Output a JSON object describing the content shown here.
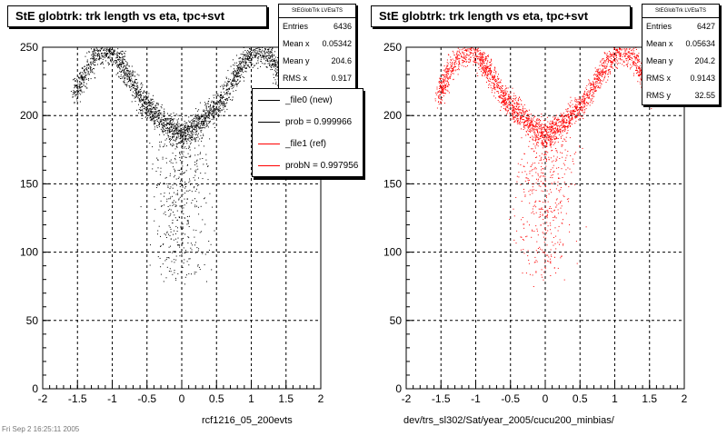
{
  "colors": {
    "left_series": "#000000",
    "right_series": "#ff0000",
    "grid": "#000000"
  },
  "footnote": "Fri Sep 2 16:25:11 2005",
  "panels": [
    {
      "title": "StE globtrk: trk length vs eta, tpc+svt",
      "stats": {
        "name": "StEGlobTrk LVEtaTS",
        "rows": [
          {
            "label": "Entries",
            "value": "6436"
          },
          {
            "label": "Mean x",
            "value": "0.05342"
          },
          {
            "label": "Mean y",
            "value": "204.6"
          },
          {
            "label": "RMS x",
            "value": "0.917"
          }
        ]
      },
      "legend": [
        {
          "text": "_file0 (new)",
          "color": "#000000"
        },
        {
          "text": "prob = 0.999966",
          "color": "#000000"
        },
        {
          "text": "_file1 (ref)",
          "color": "#ff0000"
        },
        {
          "text": "probN = 0.997956",
          "color": "#ff0000"
        }
      ],
      "x_title": "rcf1216_05_200evts"
    },
    {
      "title": "StE globtrk: trk length vs eta, tpc+svt",
      "stats": {
        "name": "StEGlobTrk LVEtaTS",
        "rows": [
          {
            "label": "Entries",
            "value": "6427"
          },
          {
            "label": "Mean x",
            "value": "0.05634"
          },
          {
            "label": "Mean y",
            "value": "204.2"
          },
          {
            "label": "RMS x",
            "value": "0.9143"
          },
          {
            "label": "RMS y",
            "value": "32.55"
          }
        ]
      },
      "x_title": "dev/trs_sl302/Sat/year_2005/cucu200_minbias/"
    }
  ],
  "chart_data": [
    {
      "type": "scatter",
      "title": "StE globtrk: trk length vs eta, tpc+svt",
      "xlabel": "rcf1216_05_200evts",
      "ylabel": "",
      "xlim": [
        -2,
        2
      ],
      "ylim": [
        0,
        250
      ],
      "xticks": [
        -2,
        -1.5,
        -1,
        -0.5,
        0,
        0.5,
        1,
        1.5,
        2
      ],
      "yticks": [
        0,
        50,
        100,
        150,
        200,
        250
      ],
      "grid": true,
      "series": [
        {
          "color": "#000000",
          "entries": 6436,
          "density_ridge": {
            "x": [
              -1.55,
              -1.4,
              -1.25,
              -1.05,
              -0.9,
              -0.75,
              -0.6,
              -0.45,
              -0.3,
              -0.15,
              0,
              0.15,
              0.3,
              0.45,
              0.6,
              0.75,
              0.9,
              1.05,
              1.25,
              1.4,
              1.55
            ],
            "y": [
              215,
              230,
              245,
              248,
              240,
              228,
              213,
              205,
              197,
              190,
              187,
              190,
              197,
              205,
              213,
              228,
              240,
              248,
              245,
              230,
              215
            ]
          },
          "low_tail": {
            "x_range": [
              -0.6,
              0.6
            ],
            "y_range": [
              75,
              185
            ]
          }
        }
      ]
    },
    {
      "type": "scatter",
      "title": "StE globtrk: trk length vs eta, tpc+svt",
      "xlabel": "dev/trs_sl302/Sat/year_2005/cucu200_minbias/",
      "ylabel": "",
      "xlim": [
        -2,
        2
      ],
      "ylim": [
        0,
        250
      ],
      "xticks": [
        -2,
        -1.5,
        -1,
        -0.5,
        0,
        0.5,
        1,
        1.5,
        2
      ],
      "yticks": [
        0,
        50,
        100,
        150,
        200,
        250
      ],
      "grid": true,
      "series": [
        {
          "color": "#ff0000",
          "entries": 6427,
          "density_ridge": {
            "x": [
              -1.55,
              -1.4,
              -1.25,
              -1.05,
              -0.9,
              -0.75,
              -0.6,
              -0.45,
              -0.3,
              -0.15,
              0,
              0.15,
              0.3,
              0.45,
              0.6,
              0.75,
              0.9,
              1.05,
              1.25,
              1.4,
              1.55
            ],
            "y": [
              215,
              230,
              245,
              248,
              240,
              228,
              213,
              205,
              197,
              190,
              187,
              190,
              197,
              205,
              213,
              228,
              240,
              248,
              245,
              230,
              215
            ]
          },
          "low_tail": {
            "x_range": [
              -0.6,
              0.6
            ],
            "y_range": [
              75,
              185
            ]
          }
        }
      ]
    }
  ]
}
